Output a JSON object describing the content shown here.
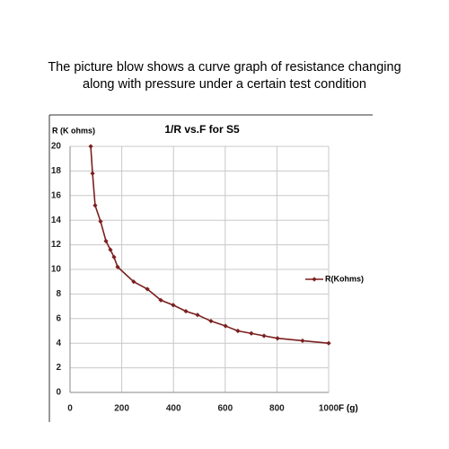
{
  "caption": [
    "The picture blow shows a curve graph of resistance changing",
    "along with pressure under a certain test condition"
  ],
  "chart_data": {
    "type": "line",
    "title": "1/R vs.F for S5",
    "y_label": "R (K ohms)",
    "x_label": "F (g)",
    "x": [
      80,
      87,
      97,
      118,
      139,
      156,
      170,
      184,
      246,
      299,
      351,
      399,
      448,
      493,
      545,
      601,
      649,
      701,
      750,
      802,
      899,
      1000
    ],
    "series": [
      {
        "name": "R(Kohms)",
        "color": "#7b1f1f",
        "values": [
          20,
          17.8,
          15.2,
          13.9,
          12.3,
          11.6,
          11.0,
          10.2,
          9.0,
          8.4,
          7.5,
          7.1,
          6.6,
          6.3,
          5.8,
          5.4,
          5.0,
          4.8,
          4.6,
          4.4,
          4.2,
          4.0
        ]
      }
    ],
    "xlim": [
      0,
      1000
    ],
    "xticks": [
      0,
      200,
      400,
      600,
      800,
      1000
    ],
    "ylim": [
      0,
      20
    ],
    "yticks": [
      0,
      2,
      4,
      6,
      8,
      10,
      12,
      14,
      16,
      18,
      20
    ],
    "grid": true,
    "legend": "right"
  }
}
